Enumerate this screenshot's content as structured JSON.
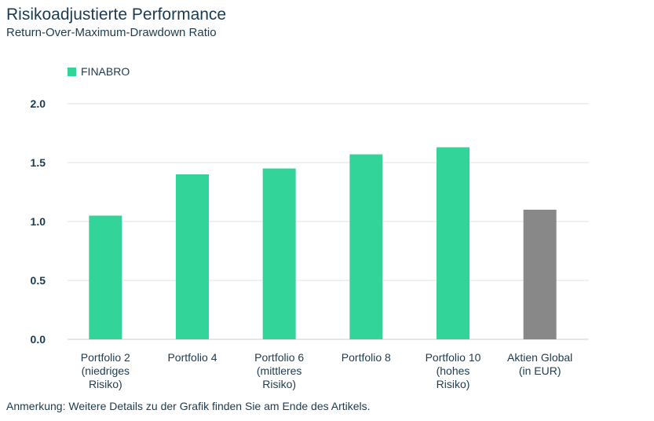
{
  "colors": {
    "finabro": "#33d49a",
    "benchmark": "#888888",
    "grid": "#e2e2e2",
    "text": "#1c3b50"
  },
  "note": "Anmerkung: Weitere Details zu der Grafik finden Sie am Ende des Artikels.",
  "chart_data": {
    "type": "bar",
    "title": "Risikoadjustierte Performance",
    "subtitle": "Return-Over-Maximum-Drawdown Ratio",
    "legend": [
      "FINABRO"
    ],
    "legend_position": "top-left",
    "grid": true,
    "ylim": [
      0,
      2.0
    ],
    "yticks": [
      "0.0",
      "0.5",
      "1.0",
      "1.5",
      "2.0"
    ],
    "categories": [
      [
        "Portfolio 2",
        "(niedriges",
        "Risiko)"
      ],
      [
        "Portfolio 4"
      ],
      [
        "Portfolio 6",
        "(mittleres",
        "Risiko)"
      ],
      [
        "Portfolio 8"
      ],
      [
        "Portfolio 10",
        "(hohes",
        "Risiko)"
      ],
      [
        "Aktien Global",
        "(in EUR)"
      ]
    ],
    "values": [
      1.05,
      1.4,
      1.45,
      1.57,
      1.63,
      1.1
    ],
    "bar_colors": [
      "finabro",
      "finabro",
      "finabro",
      "finabro",
      "finabro",
      "benchmark"
    ]
  }
}
